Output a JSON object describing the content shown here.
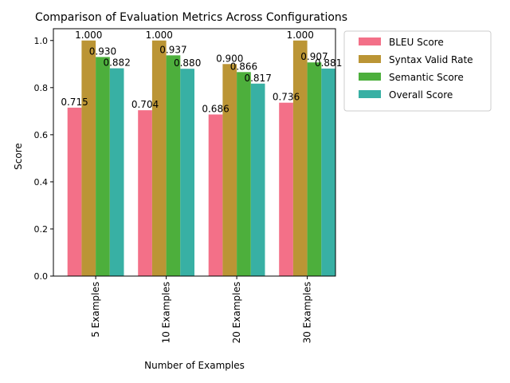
{
  "chart_data": {
    "type": "bar",
    "title": "Comparison of Evaluation Metrics Across Configurations",
    "xlabel": "Number of Examples",
    "ylabel": "Score",
    "categories": [
      "5 Examples",
      "10 Examples",
      "20 Examples",
      "30 Examples"
    ],
    "ylim": [
      0,
      1.05
    ],
    "yticks": [
      "0.0",
      "0.2",
      "0.4",
      "0.6",
      "0.8",
      "1.0"
    ],
    "grid": false,
    "legend_position": "outside-top-right",
    "series": [
      {
        "name": "BLEU Score",
        "color": "#f37088",
        "values": [
          0.715,
          0.704,
          0.686,
          0.736
        ],
        "labels": [
          "0.715",
          "0.704",
          "0.686",
          "0.736"
        ]
      },
      {
        "name": "Syntax Valid Rate",
        "color": "#bb9535",
        "values": [
          1.0,
          1.0,
          0.9,
          1.0
        ],
        "labels": [
          "1.000",
          "1.000",
          "0.900",
          "1.000"
        ]
      },
      {
        "name": "Semantic Score",
        "color": "#4daf3c",
        "values": [
          0.93,
          0.937,
          0.866,
          0.907
        ],
        "labels": [
          "0.930",
          "0.937",
          "0.866",
          "0.907"
        ]
      },
      {
        "name": "Overall Score",
        "color": "#38b0a4",
        "values": [
          0.882,
          0.88,
          0.817,
          0.881
        ],
        "labels": [
          "0.882",
          "0.880",
          "0.817",
          "0.881"
        ]
      }
    ]
  }
}
